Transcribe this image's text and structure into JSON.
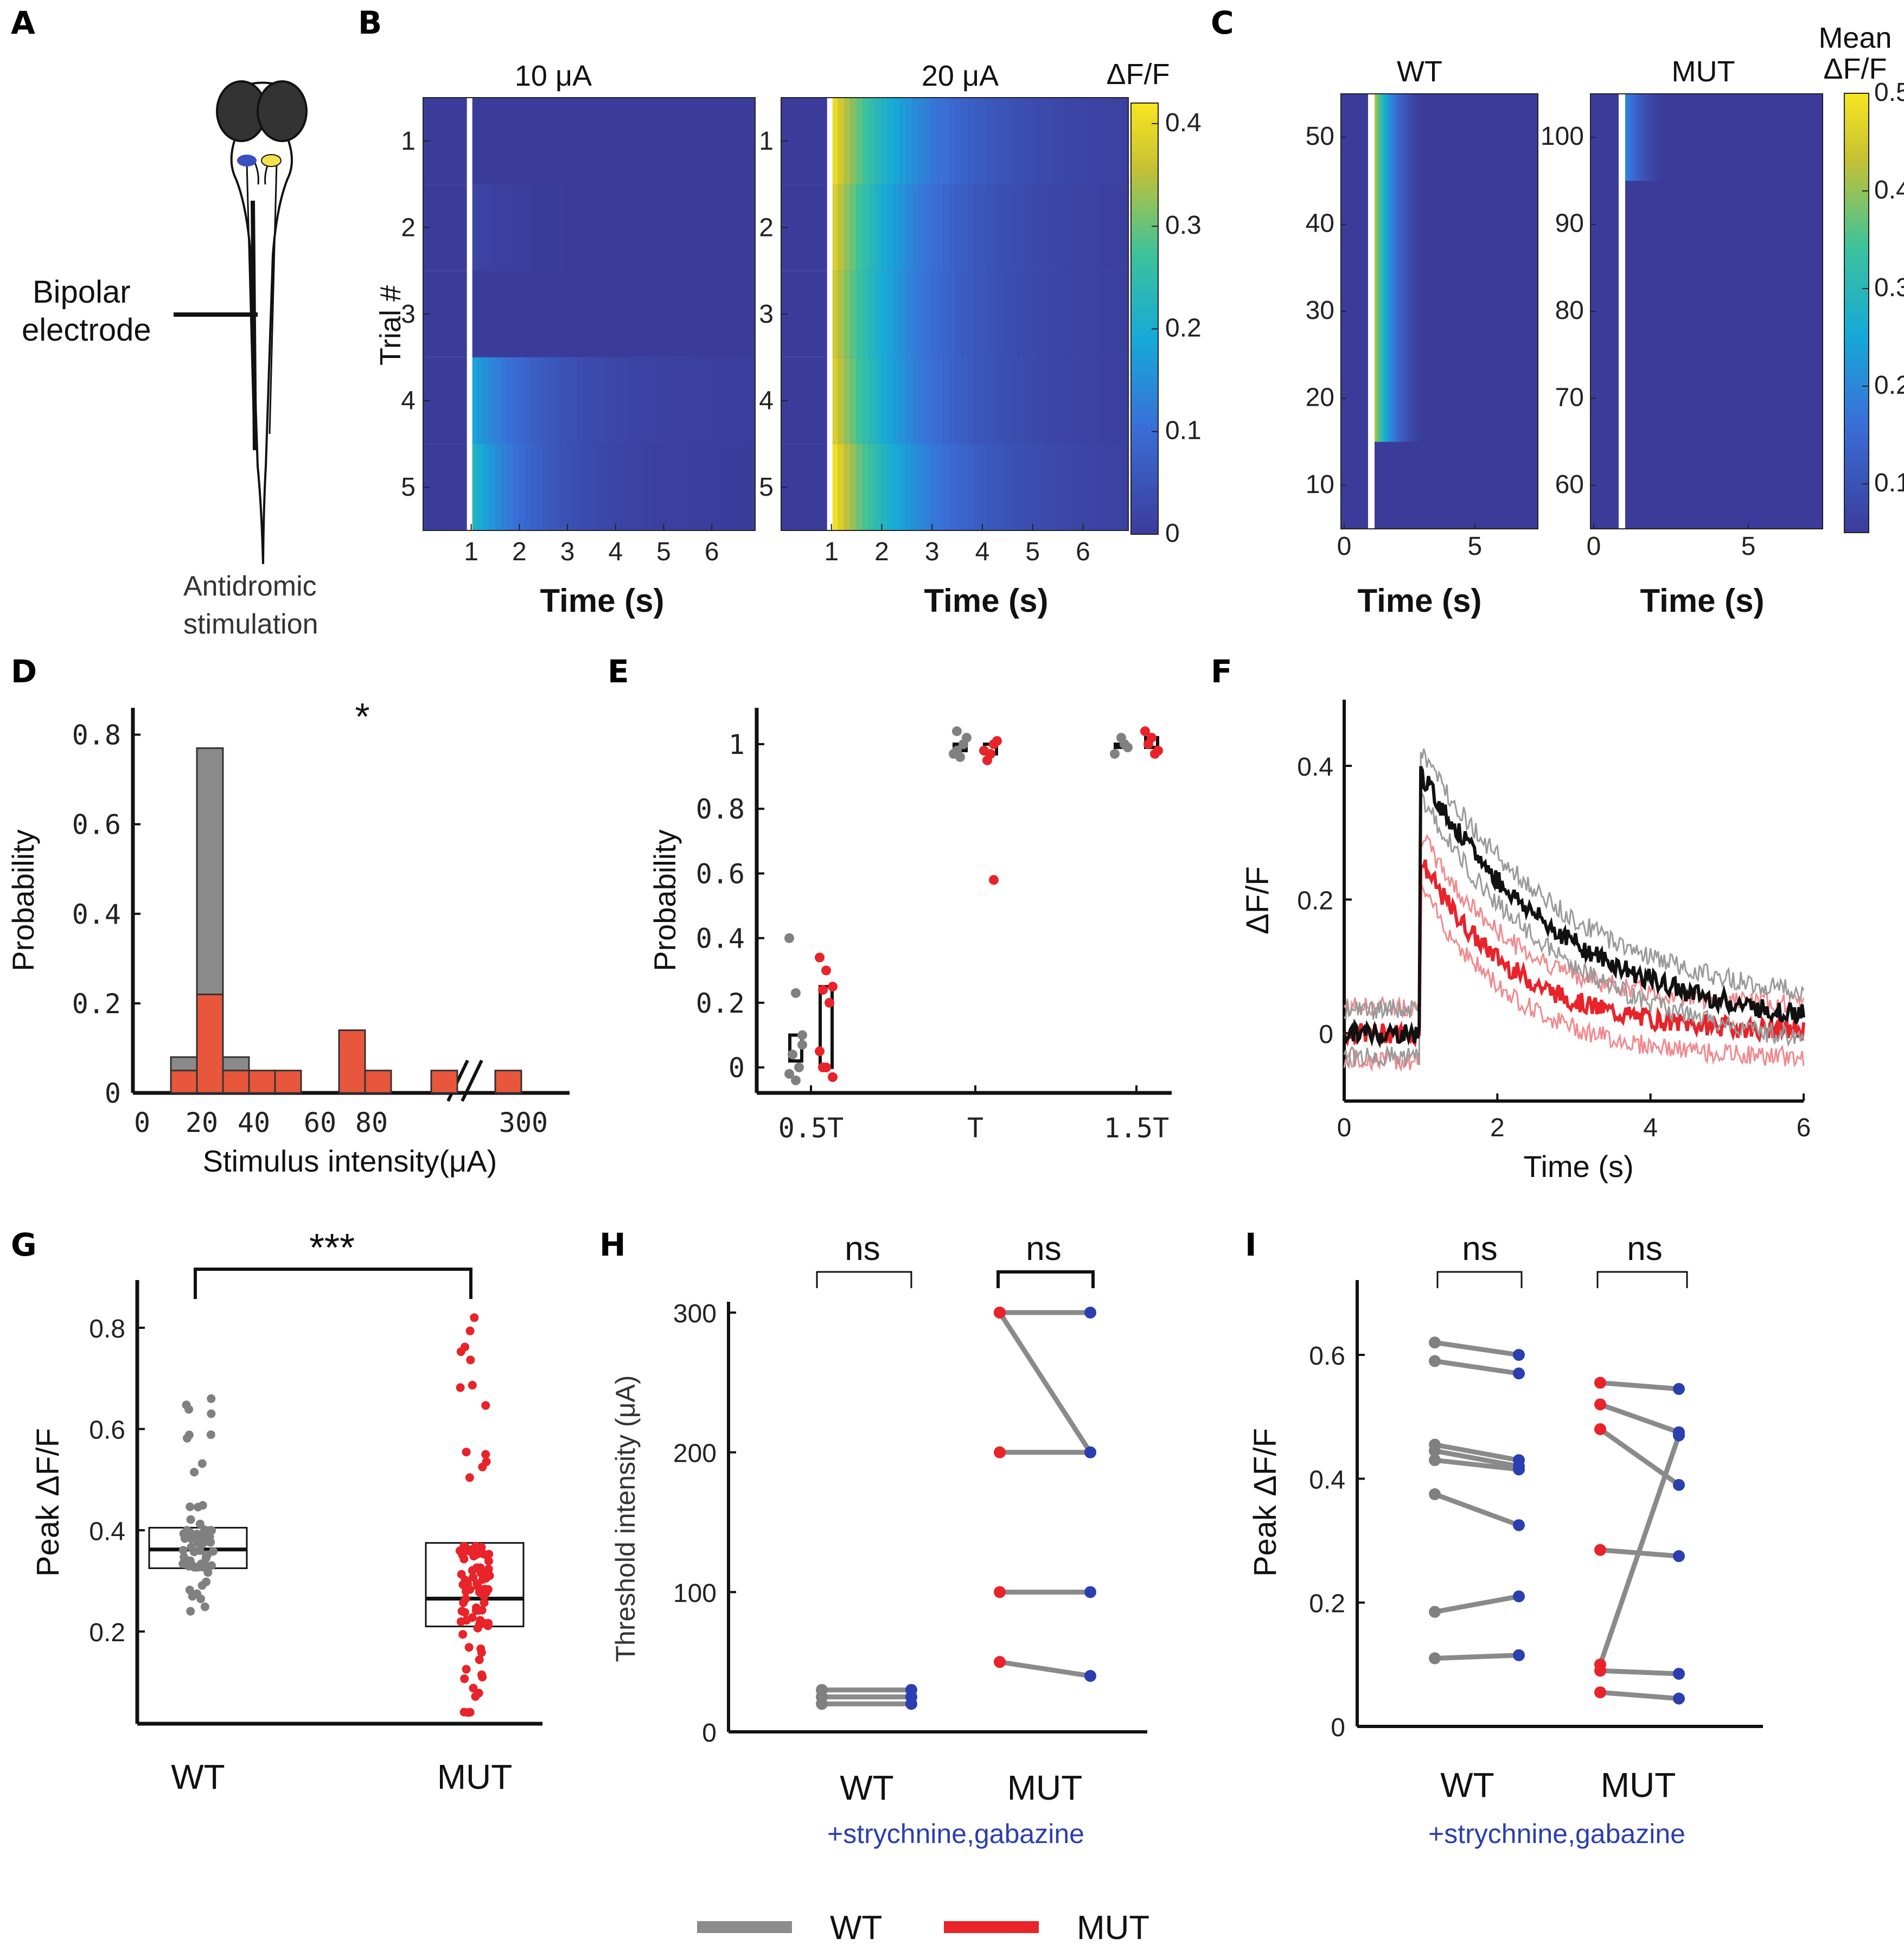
{
  "colors": {
    "wt": "#808080",
    "mut": "#e8232a",
    "mut_bar": "#e8573c",
    "blue": "#2b3fb0",
    "heat_low": "#3b3c9a"
  },
  "panels": {
    "A": {
      "letter": "A",
      "electrode": [
        "Bipolar",
        "electrode"
      ],
      "stim": [
        "Antidromic",
        "stimulation"
      ]
    },
    "B": {
      "letter": "B",
      "titles": [
        "10  μA",
        "20  μA"
      ],
      "ylabel": "Trial #",
      "xlabel": "Time (s)",
      "cbar_title": "ΔF/F",
      "cbar_ticks": [
        "0",
        "0.1",
        "0.2",
        "0.3",
        "0.4"
      ]
    },
    "C": {
      "letter": "C",
      "titles": [
        "WT",
        "MUT"
      ],
      "xlabel": "Time (s)",
      "cbar_title": [
        "Mean",
        "ΔF/F"
      ],
      "cbar_ticks": [
        "0.1",
        "0.2",
        "0.3",
        "0.4",
        "0.5"
      ]
    },
    "D": {
      "letter": "D"
    },
    "E": {
      "letter": "E"
    },
    "F": {
      "letter": "F"
    },
    "G": {
      "letter": "G"
    },
    "H": {
      "letter": "H"
    },
    "I": {
      "letter": "I"
    }
  },
  "legend": {
    "wt": "WT",
    "mut": "MUT"
  },
  "chart_data": [
    {
      "panel": "B-10uA",
      "type": "heatmap",
      "title": "10  μA",
      "xlabel": "Time (s)",
      "ylabel": "Trial #",
      "x_ticks": [
        "1",
        "2",
        "3",
        "4",
        "5",
        "6"
      ],
      "y_ticks": [
        "1",
        "2",
        "3",
        "4",
        "5"
      ],
      "rows": [
        {
          "trial": 1,
          "peak": 0.0,
          "decay_s": 0.6
        },
        {
          "trial": 2,
          "peak": 0.02,
          "decay_s": 0.6
        },
        {
          "trial": 3,
          "peak": 0.0,
          "decay_s": 0.6
        },
        {
          "trial": 4,
          "peak": 0.18,
          "decay_s": 1.4
        },
        {
          "trial": 5,
          "peak": 0.22,
          "decay_s": 1.2
        }
      ],
      "stim_time_s": 1,
      "clim": [
        0,
        0.42
      ]
    },
    {
      "panel": "B-20uA",
      "type": "heatmap",
      "title": "20  μA",
      "xlabel": "Time (s)",
      "x_ticks": [
        "1",
        "2",
        "3",
        "4",
        "5",
        "6"
      ],
      "y_ticks": [
        "1",
        "2",
        "3",
        "4",
        "5"
      ],
      "rows": [
        {
          "trial": 1,
          "peak": 0.4,
          "decay_s": 1.6
        },
        {
          "trial": 2,
          "peak": 0.38,
          "decay_s": 1.5
        },
        {
          "trial": 3,
          "peak": 0.37,
          "decay_s": 1.5
        },
        {
          "trial": 4,
          "peak": 0.38,
          "decay_s": 1.5
        },
        {
          "trial": 5,
          "peak": 0.41,
          "decay_s": 1.6
        }
      ],
      "stim_time_s": 1,
      "clim": [
        0,
        0.42
      ]
    },
    {
      "panel": "C-WT",
      "type": "heatmap",
      "title": "WT",
      "xlabel": "Time (s)",
      "x_ticks": [
        "0",
        "5"
      ],
      "y_ticks": [
        "10",
        "20",
        "30",
        "40",
        "50"
      ],
      "ylim": [
        5,
        55
      ],
      "response_rows": [
        15,
        55
      ],
      "peak": 0.42,
      "stim_time_s": 1,
      "clim": [
        0.05,
        0.5
      ]
    },
    {
      "panel": "C-MUT",
      "type": "heatmap",
      "title": "MUT",
      "xlabel": "Time (s)",
      "x_ticks": [
        "0",
        "5"
      ],
      "y_ticks": [
        "60",
        "70",
        "80",
        "90",
        "100"
      ],
      "ylim": [
        55,
        105
      ],
      "response_rows": [
        95,
        105
      ],
      "peak": 0.2,
      "stim_time_s": 1,
      "clim": [
        0.05,
        0.5
      ]
    },
    {
      "panel": "D",
      "type": "bar",
      "xlabel": "Stimulus intensity(μA)",
      "ylabel": "Probability",
      "x_ticks": [
        "0",
        "20",
        "40",
        "60",
        "80",
        "300"
      ],
      "y_ticks": [
        "0",
        "0.2",
        "0.4",
        "0.6",
        "0.8"
      ],
      "ylim": [
        0,
        0.82
      ],
      "annotation": "*",
      "series": [
        {
          "name": "WT",
          "bins": [
            "10-20",
            "20-30",
            "30-40"
          ],
          "values": [
            0.08,
            0.77,
            0.08
          ]
        },
        {
          "name": "MUT",
          "bins": [
            "10-20",
            "20-30",
            "30-40",
            "40-50",
            "50-60",
            "70-80",
            "80-90",
            "100",
            "300"
          ],
          "values": [
            0.05,
            0.22,
            0.05,
            0.05,
            0.05,
            0.14,
            0.05,
            0.05,
            0.05
          ]
        }
      ]
    },
    {
      "panel": "E",
      "type": "scatter",
      "ylabel": "Probability",
      "categories": [
        "0.5T",
        "T",
        "1.5T"
      ],
      "y_ticks": [
        "0",
        "0.2",
        "0.4",
        "0.6",
        "0.8",
        "1"
      ],
      "ylim": [
        -0.05,
        1.1
      ],
      "series": [
        {
          "name": "WT",
          "points": [
            [
              0,
              0.4
            ],
            [
              0,
              0.23
            ],
            [
              0,
              0.07
            ],
            [
              0,
              0.04
            ],
            [
              0,
              0.0
            ],
            [
              0,
              -0.02
            ],
            [
              0,
              -0.04
            ],
            [
              0,
              0.1
            ],
            [
              1,
              1.04
            ],
            [
              1,
              1.0
            ],
            [
              1,
              0.97
            ],
            [
              1,
              0.96
            ],
            [
              1,
              1.02
            ],
            [
              1,
              0.98
            ],
            [
              2,
              1.0
            ],
            [
              2,
              0.97
            ],
            [
              2,
              1.02
            ],
            [
              2,
              0.99
            ]
          ],
          "box": [
            {
              "cat": 0,
              "q1": 0.02,
              "median": 0.05,
              "q3": 0.1
            },
            {
              "cat": 1,
              "q1": 0.98,
              "median": 1.0,
              "q3": 1.0
            },
            {
              "cat": 2,
              "q1": 0.99,
              "median": 1.0,
              "q3": 1.0
            }
          ]
        },
        {
          "name": "MUT",
          "points": [
            [
              0,
              0.34
            ],
            [
              0,
              0.3
            ],
            [
              0,
              0.25
            ],
            [
              0,
              0.24
            ],
            [
              0,
              0.2
            ],
            [
              0,
              0.05
            ],
            [
              0,
              0.0
            ],
            [
              0,
              -0.03
            ],
            [
              0,
              0.0
            ],
            [
              1,
              1.0
            ],
            [
              1,
              0.98
            ],
            [
              1,
              0.97
            ],
            [
              1,
              1.01
            ],
            [
              1,
              0.95
            ],
            [
              1,
              0.58
            ],
            [
              2,
              1.04
            ],
            [
              2,
              1.02
            ],
            [
              2,
              0.98
            ],
            [
              2,
              1.0
            ],
            [
              2,
              0.97
            ]
          ],
          "box": [
            {
              "cat": 0,
              "q1": 0.0,
              "median": 0.12,
              "q3": 0.25
            },
            {
              "cat": 1,
              "q1": 0.97,
              "median": 0.99,
              "q3": 1.0
            },
            {
              "cat": 2,
              "q1": 0.99,
              "median": 1.0,
              "q3": 1.02
            }
          ]
        }
      ]
    },
    {
      "panel": "F",
      "type": "line",
      "xlabel": "Time (s)",
      "ylabel": "ΔF/F",
      "x_ticks": [
        "0",
        "2",
        "4",
        "6"
      ],
      "y_ticks": [
        "0",
        "0.2",
        "0.4"
      ],
      "xlim": [
        0,
        6
      ],
      "ylim": [
        -0.1,
        0.5
      ],
      "series": [
        {
          "name": "WT",
          "baseline": 0.0,
          "onset_s": 1.0,
          "peak": 0.39,
          "tau_s": 1.9,
          "offset": 0.0,
          "sem": 0.035
        },
        {
          "name": "MUT",
          "baseline": 0.0,
          "onset_s": 1.0,
          "peak": 0.26,
          "tau_s": 1.2,
          "offset": 0.0,
          "sem": 0.04
        }
      ]
    },
    {
      "panel": "G",
      "type": "scatter",
      "ylabel": "Peak ΔF/F",
      "categories": [
        "WT",
        "MUT"
      ],
      "y_ticks": [
        "0.2",
        "0.4",
        "0.6",
        "0.8"
      ],
      "ylim": [
        0.05,
        0.88
      ],
      "annotation": "***",
      "series": [
        {
          "name": "WT",
          "box": {
            "q1": 0.325,
            "median": 0.362,
            "q3": 0.405
          },
          "min": 0.24,
          "max": 0.66
        },
        {
          "name": "MUT",
          "box": {
            "q1": 0.21,
            "median": 0.265,
            "q3": 0.375
          },
          "min": 0.04,
          "max": 0.82
        }
      ]
    },
    {
      "panel": "H",
      "type": "line",
      "ylabel": "Threshold intensity (μA)",
      "categories": [
        "WT",
        "MUT"
      ],
      "subtitle": "+strychnine,gabazine",
      "y_ticks": [
        "0",
        "100",
        "200",
        "300"
      ],
      "ylim": [
        0,
        310
      ],
      "annotations": [
        "ns",
        "ns"
      ],
      "pairs": [
        {
          "group": "WT",
          "before": 20,
          "after": 20
        },
        {
          "group": "WT",
          "before": 25,
          "after": 25
        },
        {
          "group": "WT",
          "before": 30,
          "after": 30
        },
        {
          "group": "MUT",
          "before": 300,
          "after": 300
        },
        {
          "group": "MUT",
          "before": 300,
          "after": 200
        },
        {
          "group": "MUT",
          "before": 200,
          "after": 200
        },
        {
          "group": "MUT",
          "before": 100,
          "after": 100
        },
        {
          "group": "MUT",
          "before": 50,
          "after": 40
        }
      ]
    },
    {
      "panel": "I",
      "type": "line",
      "ylabel": "Peak ΔF/F",
      "categories": [
        "WT",
        "MUT"
      ],
      "subtitle": "+strychnine,gabazine",
      "y_ticks": [
        "0",
        "0.2",
        "0.4",
        "0.6"
      ],
      "ylim": [
        0,
        0.7
      ],
      "annotations": [
        "ns",
        "ns"
      ],
      "pairs": [
        {
          "group": "WT",
          "before": 0.62,
          "after": 0.6
        },
        {
          "group": "WT",
          "before": 0.59,
          "after": 0.57
        },
        {
          "group": "WT",
          "before": 0.455,
          "after": 0.43
        },
        {
          "group": "WT",
          "before": 0.445,
          "after": 0.42
        },
        {
          "group": "WT",
          "before": 0.43,
          "after": 0.415
        },
        {
          "group": "WT",
          "before": 0.375,
          "after": 0.325
        },
        {
          "group": "WT",
          "before": 0.185,
          "after": 0.21
        },
        {
          "group": "WT",
          "before": 0.11,
          "after": 0.115
        },
        {
          "group": "MUT",
          "before": 0.555,
          "after": 0.545
        },
        {
          "group": "MUT",
          "before": 0.52,
          "after": 0.475
        },
        {
          "group": "MUT",
          "before": 0.48,
          "after": 0.39
        },
        {
          "group": "MUT",
          "before": 0.285,
          "after": 0.275
        },
        {
          "group": "MUT",
          "before": 0.1,
          "after": 0.47
        },
        {
          "group": "MUT",
          "before": 0.09,
          "after": 0.085
        },
        {
          "group": "MUT",
          "before": 0.055,
          "after": 0.045
        }
      ]
    }
  ]
}
